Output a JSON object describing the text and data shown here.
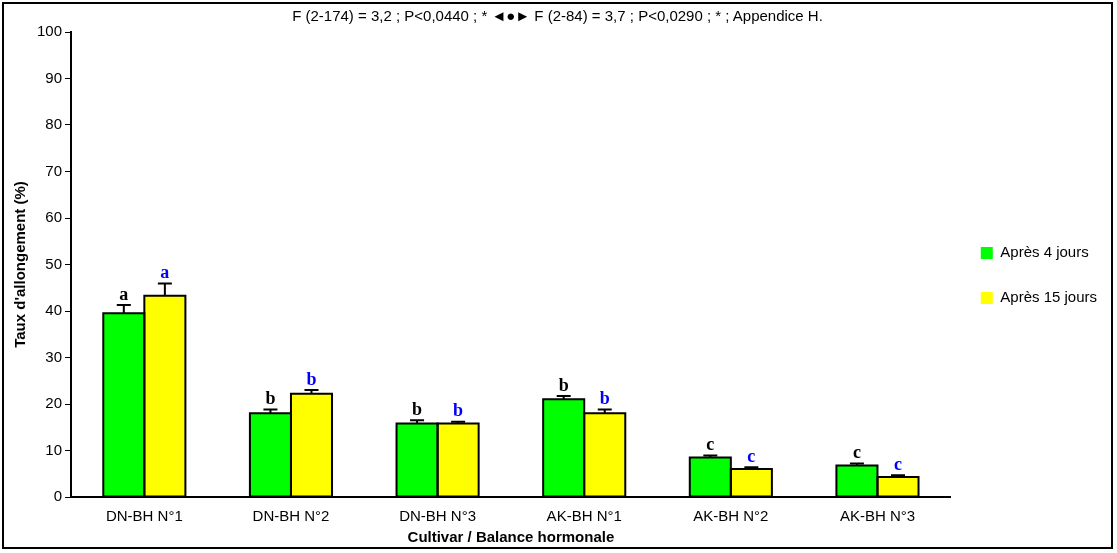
{
  "chart_data": {
    "type": "bar",
    "title": "F (2-174) = 3,2 ; P<0,0440 ; * ◄●► F (2-84) = 3,7 ; P<0,0290 ; * ; Appendice H.",
    "xlabel": "Cultivar / Balance hormonale",
    "ylabel": "Taux d'allongement (%)",
    "categories": [
      "DN-BH N°1",
      "DN-BH N°2",
      "DN-BH N°3",
      "AK-BH N°1",
      "AK-BH N°2",
      "AK-BH N°3"
    ],
    "series": [
      {
        "name": "Après 4 jours",
        "color": "#00ff00",
        "values": [
          39.5,
          18,
          15.8,
          21,
          8.5,
          6.8
        ],
        "errors": [
          [
            39.5,
            41.3
          ],
          [
            18,
            18.8
          ],
          [
            15.8,
            16.5
          ],
          [
            21,
            21.7
          ],
          [
            8.5,
            8.9
          ],
          [
            6.8,
            7.2
          ]
        ],
        "value_labels": [
          "a",
          "b",
          "b",
          "b",
          "c",
          "c"
        ]
      },
      {
        "name": "Après 15 jours",
        "color": "#ffff00",
        "values": [
          43.3,
          22.2,
          15.8,
          18,
          6,
          4.3
        ],
        "errors": [
          [
            43.3,
            45.9
          ],
          [
            22.2,
            23
          ],
          [
            15.8,
            16.2
          ],
          [
            18,
            18.8
          ],
          [
            6,
            6.4
          ],
          [
            4.3,
            4.7
          ]
        ],
        "value_labels": [
          "a",
          "b",
          "b",
          "b",
          "c",
          "c"
        ]
      }
    ],
    "ylim": [
      0,
      100
    ],
    "yticks": [
      0,
      10,
      20,
      30,
      40,
      50,
      60,
      70,
      80,
      90,
      100
    ],
    "grid": false,
    "legend": "right"
  }
}
